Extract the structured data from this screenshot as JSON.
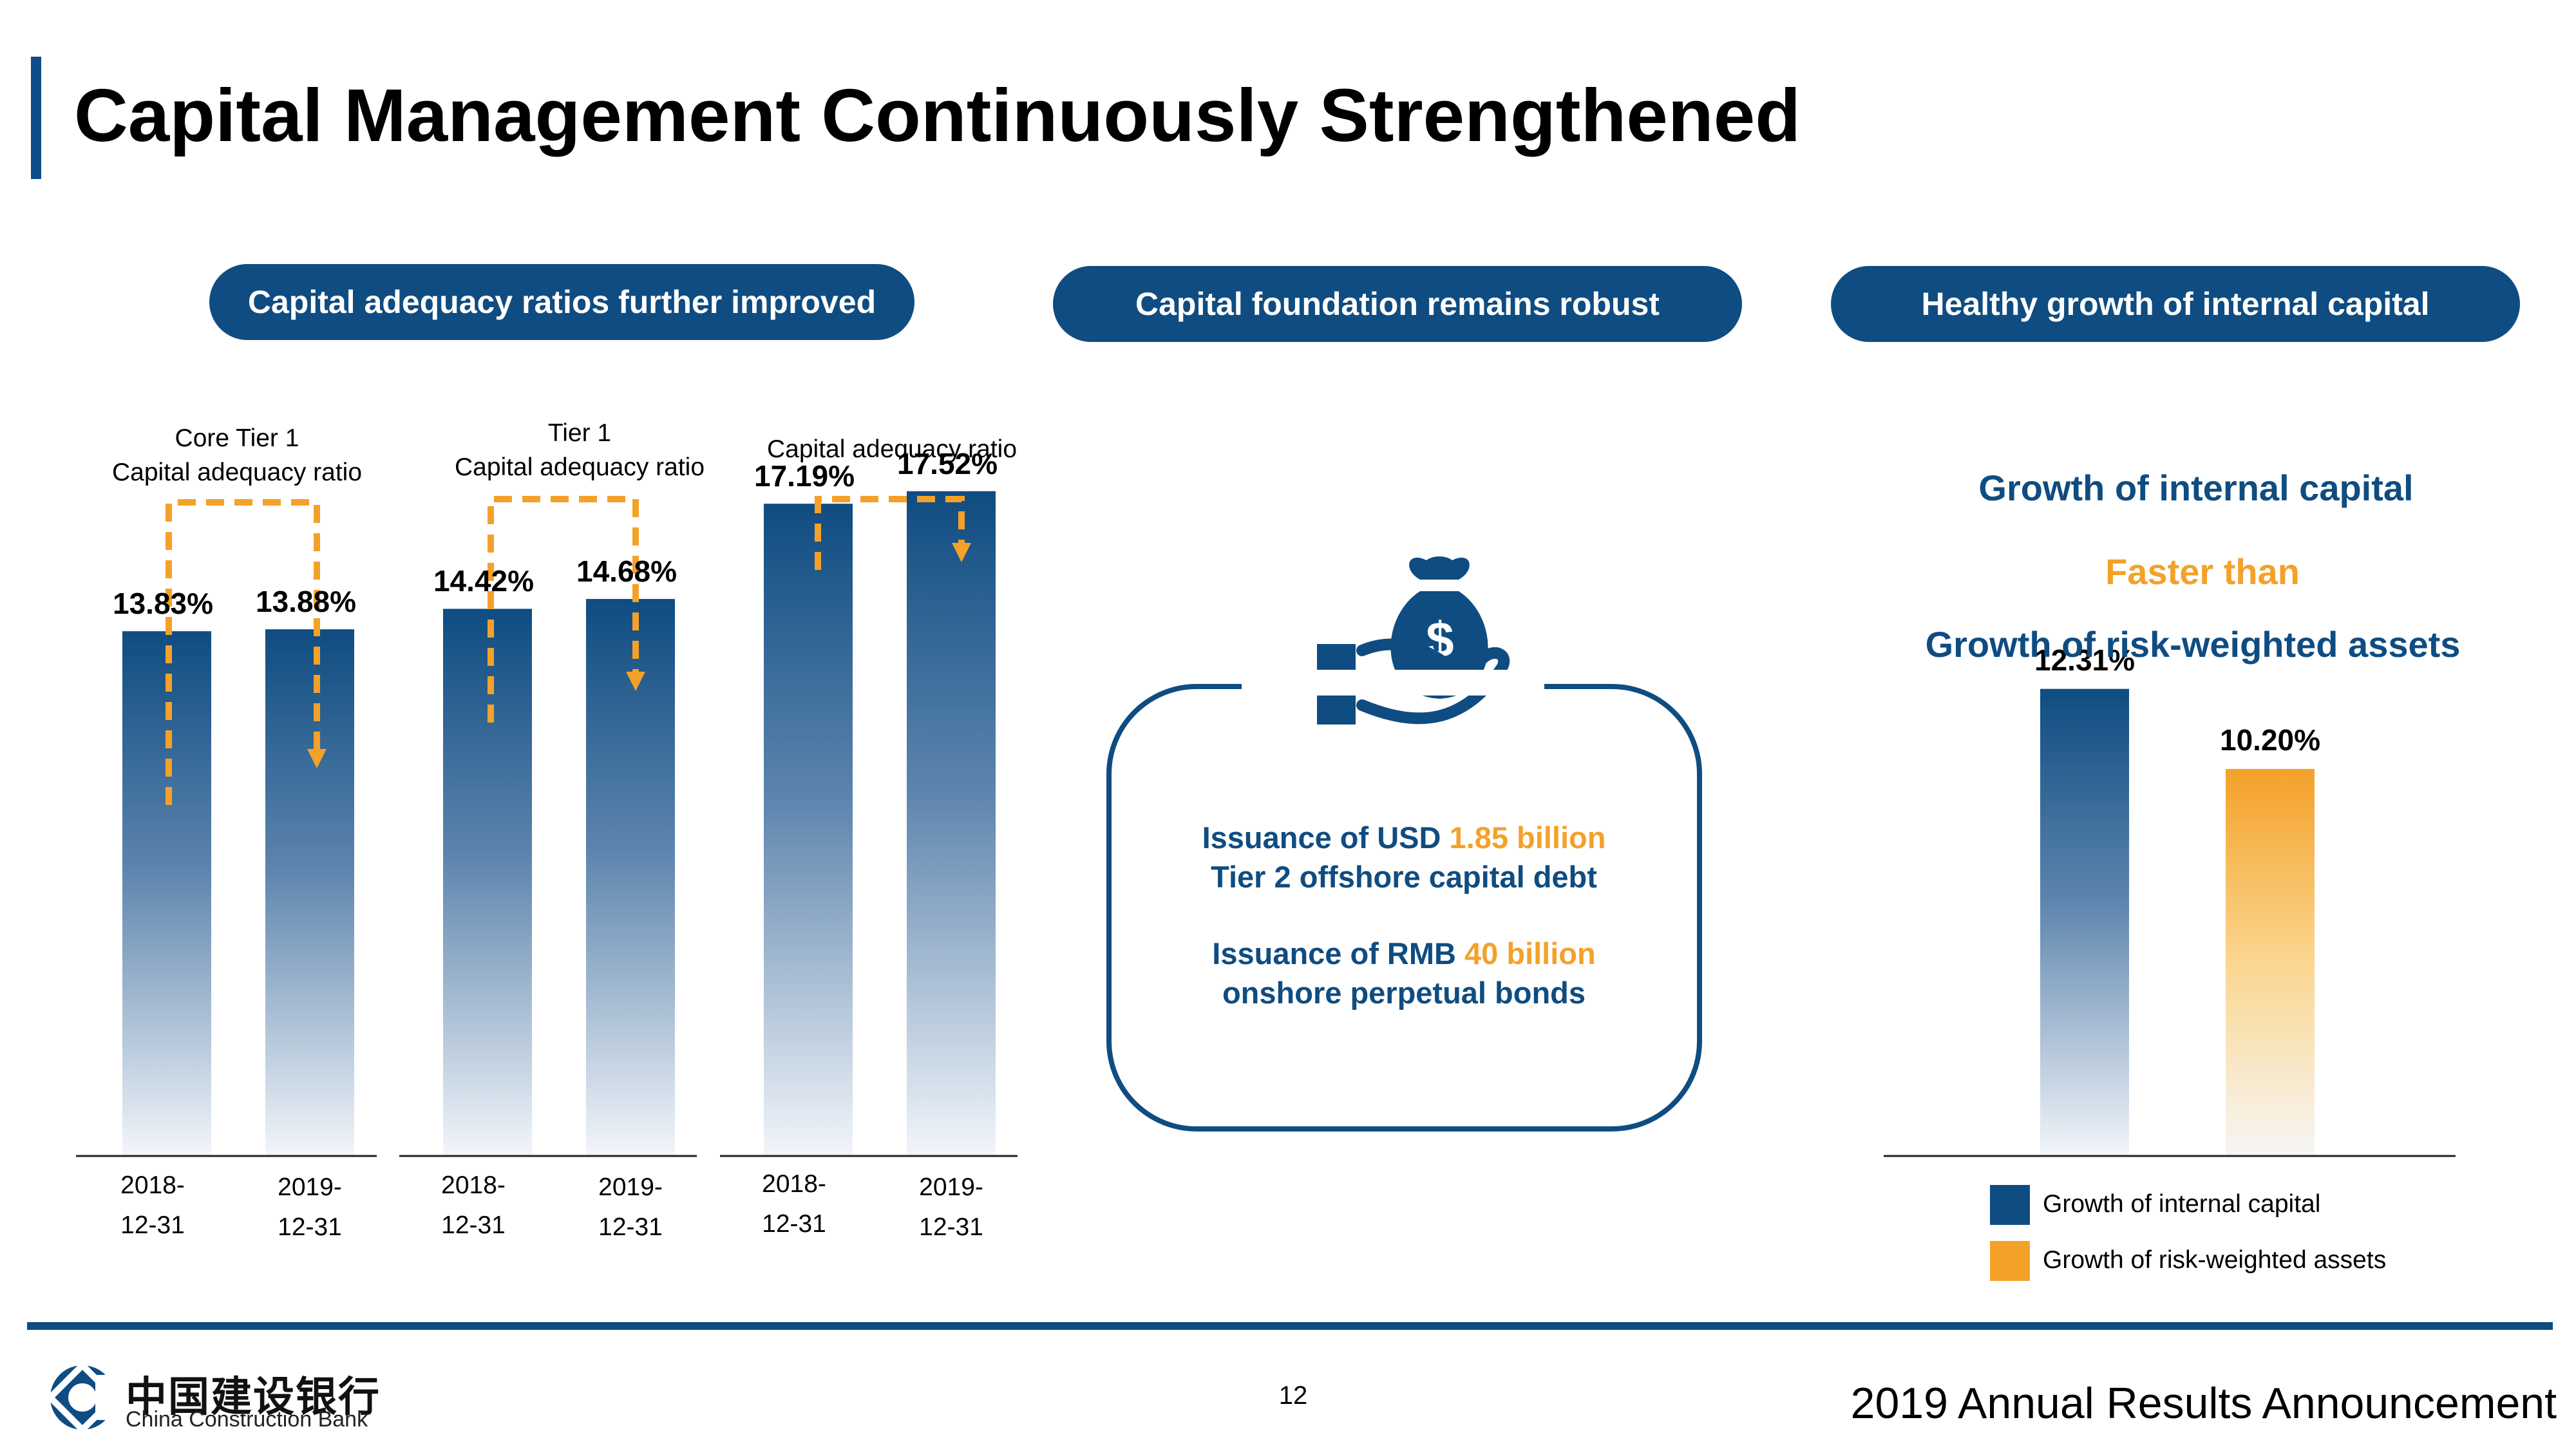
{
  "page": {
    "title": "Capital Management Continuously Strengthened",
    "page_number": "12",
    "footer_title": "2019 Annual Results Announcement",
    "logo_cn": "中国建设银行",
    "logo_en": "China Construction Bank"
  },
  "pills": [
    "Capital adequacy ratios further improved",
    "Capital foundation remains robust",
    "Healthy growth of internal capital"
  ],
  "colors": {
    "navy": "#0f4c81",
    "orange": "#f4a12a"
  },
  "chart_data": [
    {
      "type": "bar",
      "group_labels": [
        [
          "Core Tier 1",
          "Capital adequacy ratio"
        ],
        [
          "Tier 1",
          "Capital adequacy ratio"
        ],
        [
          "Capital adequacy ratio"
        ]
      ],
      "groups": [
        {
          "categories": [
            [
              "2018-",
              "12-31"
            ],
            [
              "2019-",
              "12-31"
            ]
          ],
          "values": [
            13.83,
            13.88
          ],
          "value_labels": [
            "13.83%",
            "13.88%"
          ]
        },
        {
          "categories": [
            [
              "2018-",
              "12-31"
            ],
            [
              "2019-",
              "12-31"
            ]
          ],
          "values": [
            14.42,
            14.68
          ],
          "value_labels": [
            "14.42%",
            "14.68%"
          ]
        },
        {
          "categories": [
            [
              "2018-",
              "12-31"
            ],
            [
              "2019-",
              "12-31"
            ]
          ],
          "values": [
            17.19,
            17.52
          ],
          "value_labels": [
            "17.19%",
            "17.52%"
          ]
        }
      ],
      "bar_color": "#0f4c81",
      "ylim": [
        0,
        18.5
      ]
    },
    {
      "type": "bar",
      "title_lines": [
        "Growth of internal capital",
        "Faster than",
        "Growth of risk-weighted assets"
      ],
      "categories": [
        "Growth of internal capital",
        "Growth of risk-weighted assets"
      ],
      "values": [
        12.31,
        10.2
      ],
      "value_labels": [
        "12.31%",
        "10.20%"
      ],
      "colors": [
        "#0f4c81",
        "#f4a12a"
      ],
      "legend": [
        "Growth of internal capital",
        "Growth of risk-weighted assets"
      ],
      "legend_placement": "bottom",
      "ylim": [
        0,
        18.5
      ]
    }
  ],
  "center_panel": {
    "icon": "money-bag-hand-icon",
    "line1_prefix": "Issuance of USD ",
    "line1_highlight": "1.85 billion",
    "line2": "Tier 2 offshore capital debt",
    "line3_prefix": "Issuance of RMB ",
    "line3_highlight": "40 billion",
    "line4": "onshore perpetual bonds"
  }
}
